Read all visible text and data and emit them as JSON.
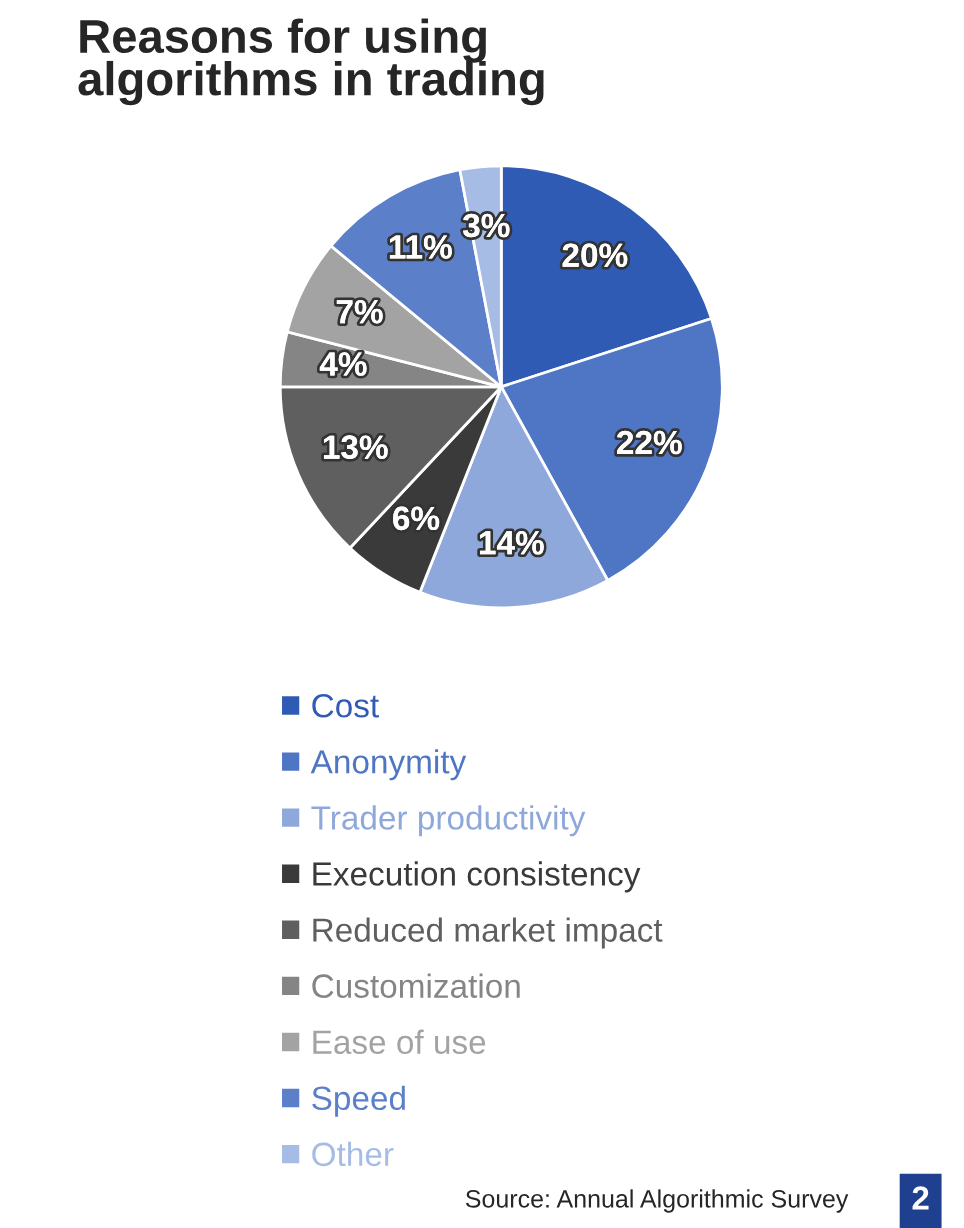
{
  "chart_data": {
    "type": "pie",
    "title": "Reasons for using\nalgorithms in trading",
    "categories": [
      "Cost",
      "Anonymity",
      "Trader productivity",
      "Execution consistency",
      "Reduced market impact",
      "Customization",
      "Ease of use",
      "Speed",
      "Other"
    ],
    "values": [
      20,
      22,
      14,
      6,
      13,
      4,
      7,
      11,
      3
    ],
    "colors": [
      "#2f5bb5",
      "#4f76c4",
      "#8fa8dc",
      "#3a3a3a",
      "#5f5f5f",
      "#858585",
      "#a3a3a3",
      "#5b7fc9",
      "#a6bce4"
    ],
    "value_labels": [
      "20%",
      "22%",
      "14%",
      "6%",
      "13%",
      "4%",
      "7%",
      "11%",
      "3%"
    ],
    "legend": "bottom",
    "annotations": [
      "Source: Annual Algorithmic Survey",
      "2"
    ]
  }
}
